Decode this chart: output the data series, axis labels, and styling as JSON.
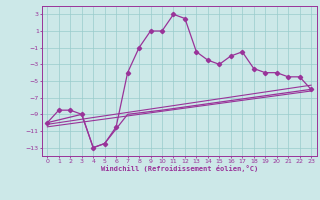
{
  "xlabel": "Windchill (Refroidissement éolien,°C)",
  "xlim": [
    -0.5,
    23.5
  ],
  "ylim": [
    -14,
    4
  ],
  "yticks": [
    3,
    1,
    -1,
    -3,
    -5,
    -7,
    -9,
    -11,
    -13
  ],
  "xticks": [
    0,
    1,
    2,
    3,
    4,
    5,
    6,
    7,
    8,
    9,
    10,
    11,
    12,
    13,
    14,
    15,
    16,
    17,
    18,
    19,
    20,
    21,
    22,
    23
  ],
  "bg_color": "#cce8e8",
  "grid_color": "#99cccc",
  "line_color": "#993399",
  "curve1_x": [
    0,
    1,
    2,
    3,
    4,
    5,
    6,
    7,
    8,
    9,
    10,
    11,
    12,
    13,
    14,
    15,
    16,
    17,
    18,
    19,
    20,
    21,
    22,
    23
  ],
  "curve1_y": [
    -10.0,
    -8.5,
    -8.5,
    -9.0,
    -13.0,
    -12.5,
    -10.5,
    -4.0,
    -1.0,
    1.0,
    1.0,
    3.0,
    2.5,
    -1.5,
    -2.5,
    -3.0,
    -2.0,
    -1.5,
    -3.5,
    -4.0,
    -4.0,
    -4.5,
    -4.5,
    -6.0
  ],
  "curve2_x": [
    0,
    3,
    4,
    5,
    7,
    10,
    23
  ],
  "curve2_y": [
    -10.0,
    -9.0,
    -13.0,
    -12.5,
    -9.0,
    -8.5,
    -6.0
  ],
  "curve3_x": [
    0,
    23
  ],
  "curve3_y": [
    -10.2,
    -5.5
  ],
  "curve4_x": [
    0,
    23
  ],
  "curve4_y": [
    -10.5,
    -6.2
  ]
}
